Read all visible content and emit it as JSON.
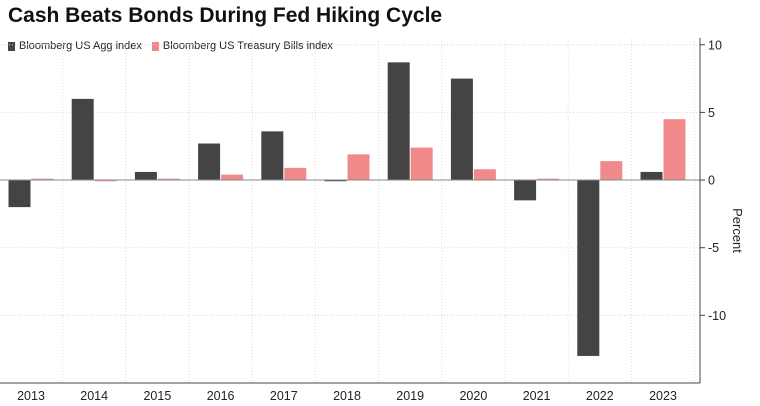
{
  "chart_data": {
    "type": "bar",
    "title": "Cash Beats Bonds During Fed Hiking Cycle",
    "xlabel": "",
    "ylabel": "Percent",
    "categories": [
      "2013",
      "2014",
      "2015",
      "2016",
      "2017",
      "2018",
      "2019",
      "2020",
      "2021",
      "2022",
      "2023"
    ],
    "series": [
      {
        "name": "Bloomberg US Agg index",
        "color": "#444444",
        "values": [
          -2.0,
          6.0,
          0.6,
          2.7,
          3.6,
          0.0,
          8.7,
          7.5,
          -1.5,
          -13.0,
          0.6
        ]
      },
      {
        "name": "Bloomberg US Treasury Bills index",
        "color": "#f08a8a",
        "values": [
          0.1,
          0.0,
          0.1,
          0.4,
          0.9,
          1.9,
          2.4,
          0.8,
          0.1,
          1.4,
          4.5
        ]
      }
    ],
    "ylim": [
      -15,
      10.5
    ],
    "yticks": [
      10,
      5,
      0,
      -5,
      -10
    ],
    "ytick_labels": [
      "10",
      "5",
      "0",
      "-5",
      "-10"
    ],
    "grid": true,
    "y_axis_side": "right",
    "legend_position": "top-left"
  }
}
